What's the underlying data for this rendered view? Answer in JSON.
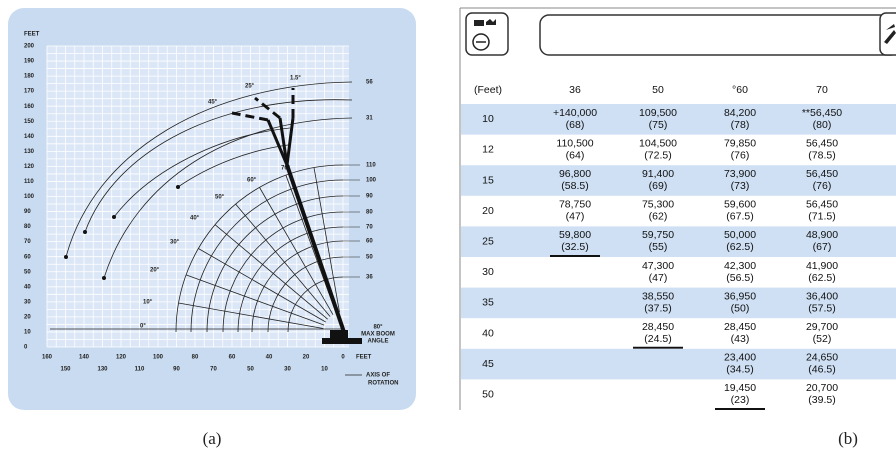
{
  "diagram": {
    "y_axis_title": "FEET",
    "y_ticks": [
      "200",
      "190",
      "180",
      "170",
      "160",
      "150",
      "140",
      "130",
      "120",
      "110",
      "100",
      "90",
      "80",
      "70",
      "60",
      "50",
      "40",
      "30",
      "20",
      "10",
      "0"
    ],
    "x_ticks_upper": [
      "160",
      "140",
      "120",
      "100",
      "80",
      "60",
      "40",
      "20",
      "0"
    ],
    "x_ticks_lower": [
      "150",
      "130",
      "110",
      "90",
      "70",
      "50",
      "30",
      "10"
    ],
    "x_axis_title": "FEET",
    "axis_of_rotation": [
      "AXIS OF",
      "ROTATION"
    ],
    "boom_lengths": [
      "110",
      "100",
      "90",
      "80",
      "70",
      "60",
      "50",
      "36"
    ],
    "jib_lengths": [
      "56",
      "31"
    ],
    "boom_angles": [
      "0°",
      "10°",
      "20°",
      "30°",
      "40°",
      "50°",
      "60°",
      "70°"
    ],
    "max_angle": "80°",
    "max_angle_note": [
      "MAX BOOM",
      "ANGLE"
    ],
    "jib_angles": [
      "1.5°",
      "25°",
      "45°"
    ]
  },
  "table": {
    "header": [
      "(Feet)",
      "36",
      "50",
      "°60",
      "70"
    ],
    "rows": [
      {
        "radius": "10",
        "cells": [
          [
            "+140,000",
            "(68)"
          ],
          [
            "109,500",
            "(75)"
          ],
          [
            "84,200",
            "(78)"
          ],
          [
            "**56,450",
            "(80)"
          ]
        ]
      },
      {
        "radius": "12",
        "cells": [
          [
            "110,500",
            "(64)"
          ],
          [
            "104,500",
            "(72.5)"
          ],
          [
            "79,850",
            "(76)"
          ],
          [
            "56,450",
            "(78.5)"
          ]
        ]
      },
      {
        "radius": "15",
        "cells": [
          [
            "96,800",
            "(58.5)"
          ],
          [
            "91,400",
            "(69)"
          ],
          [
            "73,900",
            "(73)"
          ],
          [
            "56,450",
            "(76)"
          ]
        ]
      },
      {
        "radius": "20",
        "cells": [
          [
            "78,750",
            "(47)"
          ],
          [
            "75,300",
            "(62)"
          ],
          [
            "59,600",
            "(67.5)"
          ],
          [
            "56,450",
            "(71.5)"
          ]
        ]
      },
      {
        "radius": "25",
        "cells": [
          [
            "59,800",
            "(32.5)"
          ],
          [
            "59,750",
            "(55)"
          ],
          [
            "50,000",
            "(62.5)"
          ],
          [
            "48,900",
            "(67)"
          ]
        ]
      },
      {
        "radius": "30",
        "cells": [
          null,
          [
            "47,300",
            "(47)"
          ],
          [
            "42,300",
            "(56.5)"
          ],
          [
            "41,900",
            "(62.5)"
          ]
        ]
      },
      {
        "radius": "35",
        "cells": [
          null,
          [
            "38,550",
            "(37.5)"
          ],
          [
            "36,950",
            "(50)"
          ],
          [
            "36,400",
            "(57.5)"
          ]
        ]
      },
      {
        "radius": "40",
        "cells": [
          null,
          [
            "28,450",
            "(24.5)"
          ],
          [
            "28,450",
            "(43)"
          ],
          [
            "29,700",
            "(52)"
          ]
        ]
      },
      {
        "radius": "45",
        "cells": [
          null,
          null,
          [
            "23,400",
            "(34.5)"
          ],
          [
            "24,650",
            "(46.5)"
          ]
        ]
      },
      {
        "radius": "50",
        "cells": [
          null,
          null,
          [
            "19,450",
            "(23)"
          ],
          [
            "20,700",
            "(39.5)"
          ]
        ]
      }
    ]
  },
  "captions": [
    "(a)",
    "(b)"
  ]
}
